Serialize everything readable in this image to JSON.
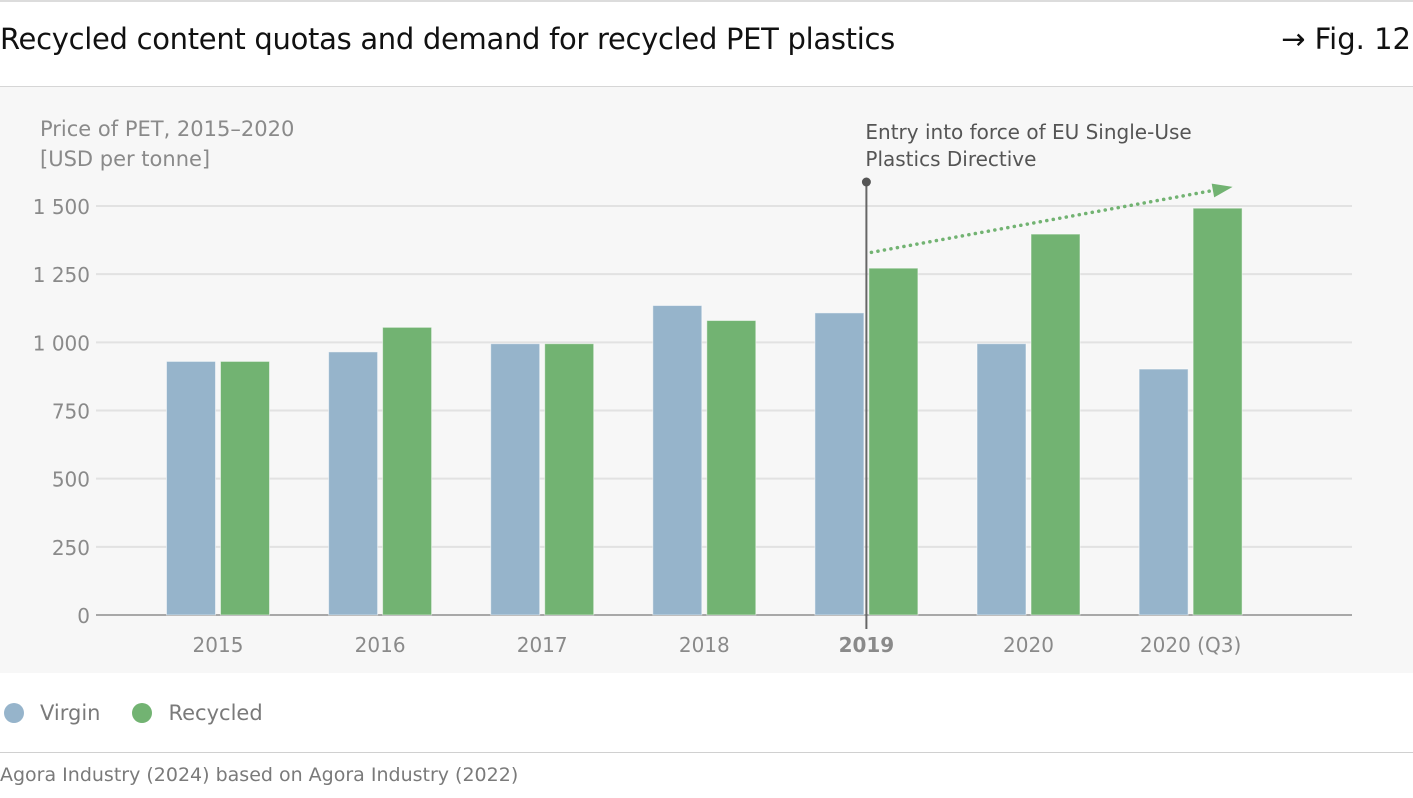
{
  "header": {
    "title": "Recycled content quotas and demand for recycled PET plastics",
    "figure_ref": "→ Fig. 12"
  },
  "legend": {
    "items": [
      {
        "label": "Virgin",
        "color": "#96b4cb"
      },
      {
        "label": "Recycled",
        "color": "#72b372"
      }
    ]
  },
  "source": "Agora Industry (2024) based on Agora Industry (2022)",
  "chart_data": {
    "type": "bar",
    "title": "Price of PET, 2015–2020",
    "ylabel": "[USD per tonne]",
    "xlabel": "",
    "categories": [
      "2015",
      "2016",
      "2017",
      "2018",
      "2019",
      "2020",
      "2020 (Q3)"
    ],
    "highlight_category": "2019",
    "series": [
      {
        "name": "Virgin",
        "color": "#96b4cb",
        "values": [
          930,
          965,
          995,
          1135,
          1108,
          995,
          902
        ]
      },
      {
        "name": "Recycled",
        "color": "#72b372",
        "values": [
          930,
          1055,
          995,
          1080,
          1272,
          1397,
          1492
        ]
      }
    ],
    "ylim": [
      0,
      1500
    ],
    "yticks": [
      0,
      250,
      500,
      750,
      1000,
      1250,
      1500
    ],
    "ytick_labels": [
      "0",
      "250",
      "500",
      "750",
      "1 000",
      "1 250",
      "1 500"
    ],
    "grid": true,
    "legend_position": "bottom-left",
    "annotation": {
      "text_lines": [
        "Entry into force of EU Single-Use",
        "Plastics Directive"
      ],
      "category": "2019",
      "trend_arrow": {
        "from_value": 1330,
        "from_category": "2019",
        "to_value": 1570,
        "to_category": "2020 (Q3)",
        "color": "#72b372",
        "style": "dotted"
      }
    }
  }
}
